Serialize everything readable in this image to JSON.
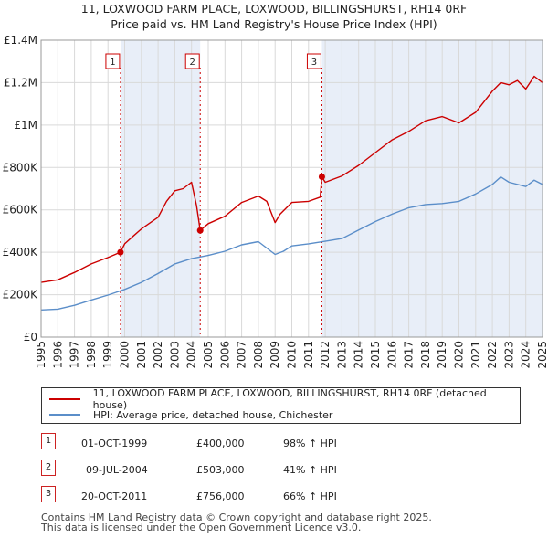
{
  "title_line1": "11, LOXWOOD FARM PLACE, LOXWOOD, BILLINGSHURST, RH14 0RF",
  "title_line2": "Price paid vs. HM Land Registry's House Price Index (HPI)",
  "colors": {
    "property": "#cc0000",
    "hpi": "#5b8ec9",
    "shade": "#e8eef8",
    "grid": "#d9d9d9",
    "marker": "#cc0000"
  },
  "chart_data": {
    "type": "line",
    "x_range": [
      1995,
      2025
    ],
    "ylim": [
      0,
      1400000
    ],
    "y_ticks": [
      0,
      200000,
      400000,
      600000,
      800000,
      1000000,
      1200000,
      1400000
    ],
    "y_tick_labels": [
      "£0",
      "£200K",
      "£400K",
      "£600K",
      "£800K",
      "£1M",
      "£1.2M",
      "£1.4M"
    ],
    "x_ticks": [
      "1995",
      "1996",
      "1997",
      "1998",
      "1999",
      "2000",
      "2001",
      "2002",
      "2003",
      "2004",
      "2005",
      "2006",
      "2007",
      "2008",
      "2009",
      "2010",
      "2011",
      "2012",
      "2013",
      "2014",
      "2015",
      "2016",
      "2017",
      "2018",
      "2019",
      "2020",
      "2021",
      "2022",
      "2023",
      "2024",
      "2025"
    ],
    "shaded_periods": [
      [
        1999.75,
        2004.52
      ],
      [
        2011.8,
        2025.0
      ]
    ],
    "series": [
      {
        "name": "11, LOXWOOD FARM PLACE, LOXWOOD, BILLINGSHURST, RH14 0RF (detached house)",
        "color": "#cc0000",
        "x": [
          1995,
          1996,
          1997,
          1998,
          1999,
          1999.75,
          2000,
          2000.5,
          2001,
          2002,
          2002.5,
          2003,
          2003.5,
          2004,
          2004.3,
          2004.52,
          2005,
          2006,
          2007,
          2007.5,
          2008,
          2008.5,
          2009,
          2009.3,
          2010,
          2011,
          2011.7,
          2011.8,
          2012,
          2013,
          2014,
          2015,
          2016,
          2017,
          2018,
          2019,
          2020,
          2021,
          2021.5,
          2022,
          2022.5,
          2023,
          2023.5,
          2024,
          2024.5,
          2025
        ],
        "y": [
          258000,
          270000,
          305000,
          345000,
          375000,
          400000,
          440000,
          475000,
          510000,
          565000,
          640000,
          690000,
          700000,
          730000,
          620000,
          503000,
          535000,
          570000,
          635000,
          650000,
          665000,
          640000,
          540000,
          580000,
          635000,
          640000,
          660000,
          756000,
          730000,
          760000,
          810000,
          870000,
          930000,
          970000,
          1020000,
          1040000,
          1010000,
          1060000,
          1110000,
          1160000,
          1200000,
          1190000,
          1210000,
          1170000,
          1230000,
          1200000
        ]
      },
      {
        "name": "HPI: Average price, detached house, Chichester",
        "color": "#5b8ec9",
        "x": [
          1995,
          1996,
          1997,
          1998,
          1999,
          2000,
          2001,
          2002,
          2003,
          2004,
          2005,
          2006,
          2007,
          2008,
          2009,
          2009.5,
          2010,
          2011,
          2012,
          2013,
          2014,
          2015,
          2016,
          2017,
          2018,
          2019,
          2020,
          2021,
          2022,
          2022.5,
          2023,
          2024,
          2024.5,
          2025
        ],
        "y": [
          128000,
          132000,
          150000,
          175000,
          198000,
          225000,
          258000,
          300000,
          345000,
          370000,
          385000,
          405000,
          435000,
          450000,
          390000,
          405000,
          430000,
          440000,
          452000,
          465000,
          505000,
          545000,
          580000,
          610000,
          625000,
          630000,
          640000,
          675000,
          720000,
          755000,
          730000,
          710000,
          740000,
          720000
        ]
      }
    ],
    "sale_markers": [
      {
        "label": "1",
        "x": 1999.75,
        "y": 400000
      },
      {
        "label": "2",
        "x": 2004.52,
        "y": 503000
      },
      {
        "label": "3",
        "x": 2011.8,
        "y": 756000
      }
    ]
  },
  "legend": {
    "property": "11, LOXWOOD FARM PLACE, LOXWOOD, BILLINGSHURST, RH14 0RF (detached house)",
    "hpi": "HPI: Average price, detached house, Chichester"
  },
  "sales": [
    {
      "num": "1",
      "date": "01-OCT-1999",
      "price": "£400,000",
      "delta": "98% ↑ HPI"
    },
    {
      "num": "2",
      "date": "09-JUL-2004",
      "price": "£503,000",
      "delta": "41% ↑ HPI"
    },
    {
      "num": "3",
      "date": "20-OCT-2011",
      "price": "£756,000",
      "delta": "66% ↑ HPI"
    }
  ],
  "footer_line1": "Contains HM Land Registry data © Crown copyright and database right 2025.",
  "footer_line2": "This data is licensed under the Open Government Licence v3.0."
}
